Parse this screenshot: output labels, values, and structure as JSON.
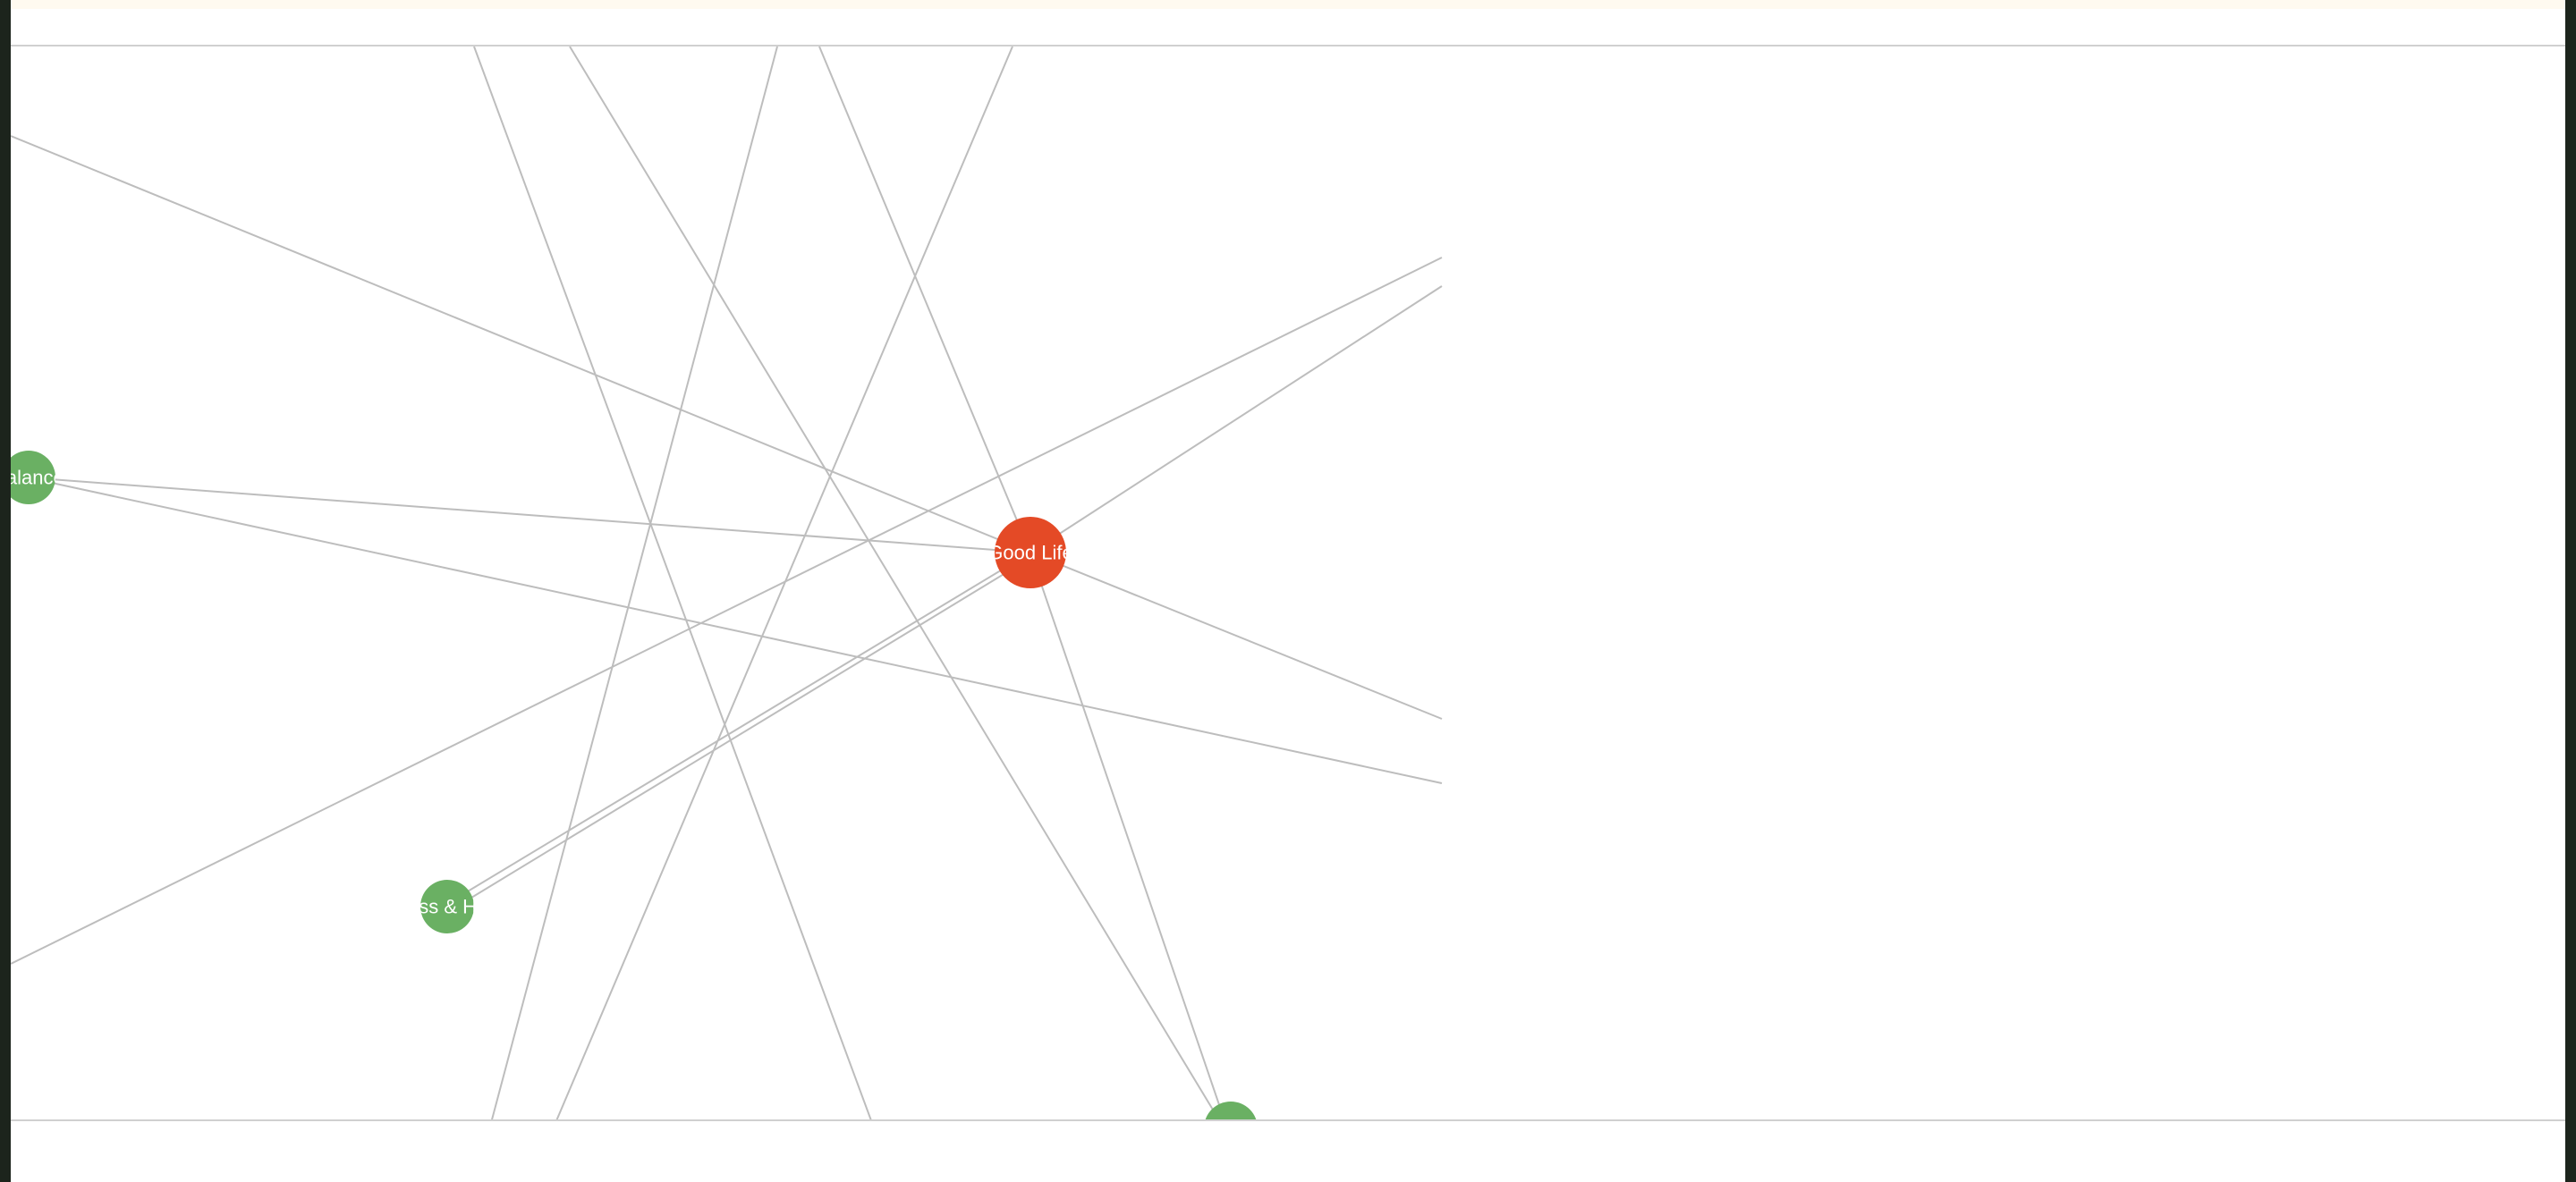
{
  "colors": {
    "center_node": "#e44a26",
    "leaf_node": "#6ab063",
    "edge": "#bdbdbd"
  },
  "graph": {
    "nodes": [
      {
        "id": "good-life",
        "label": "Good Life",
        "role": "center"
      },
      {
        "id": "balance",
        "label": "Balance",
        "role": "leaf"
      },
      {
        "id": "fitness",
        "label": "Fitness & Health",
        "role": "leaf"
      },
      {
        "id": "bottom",
        "label": "",
        "role": "leaf"
      }
    ]
  }
}
